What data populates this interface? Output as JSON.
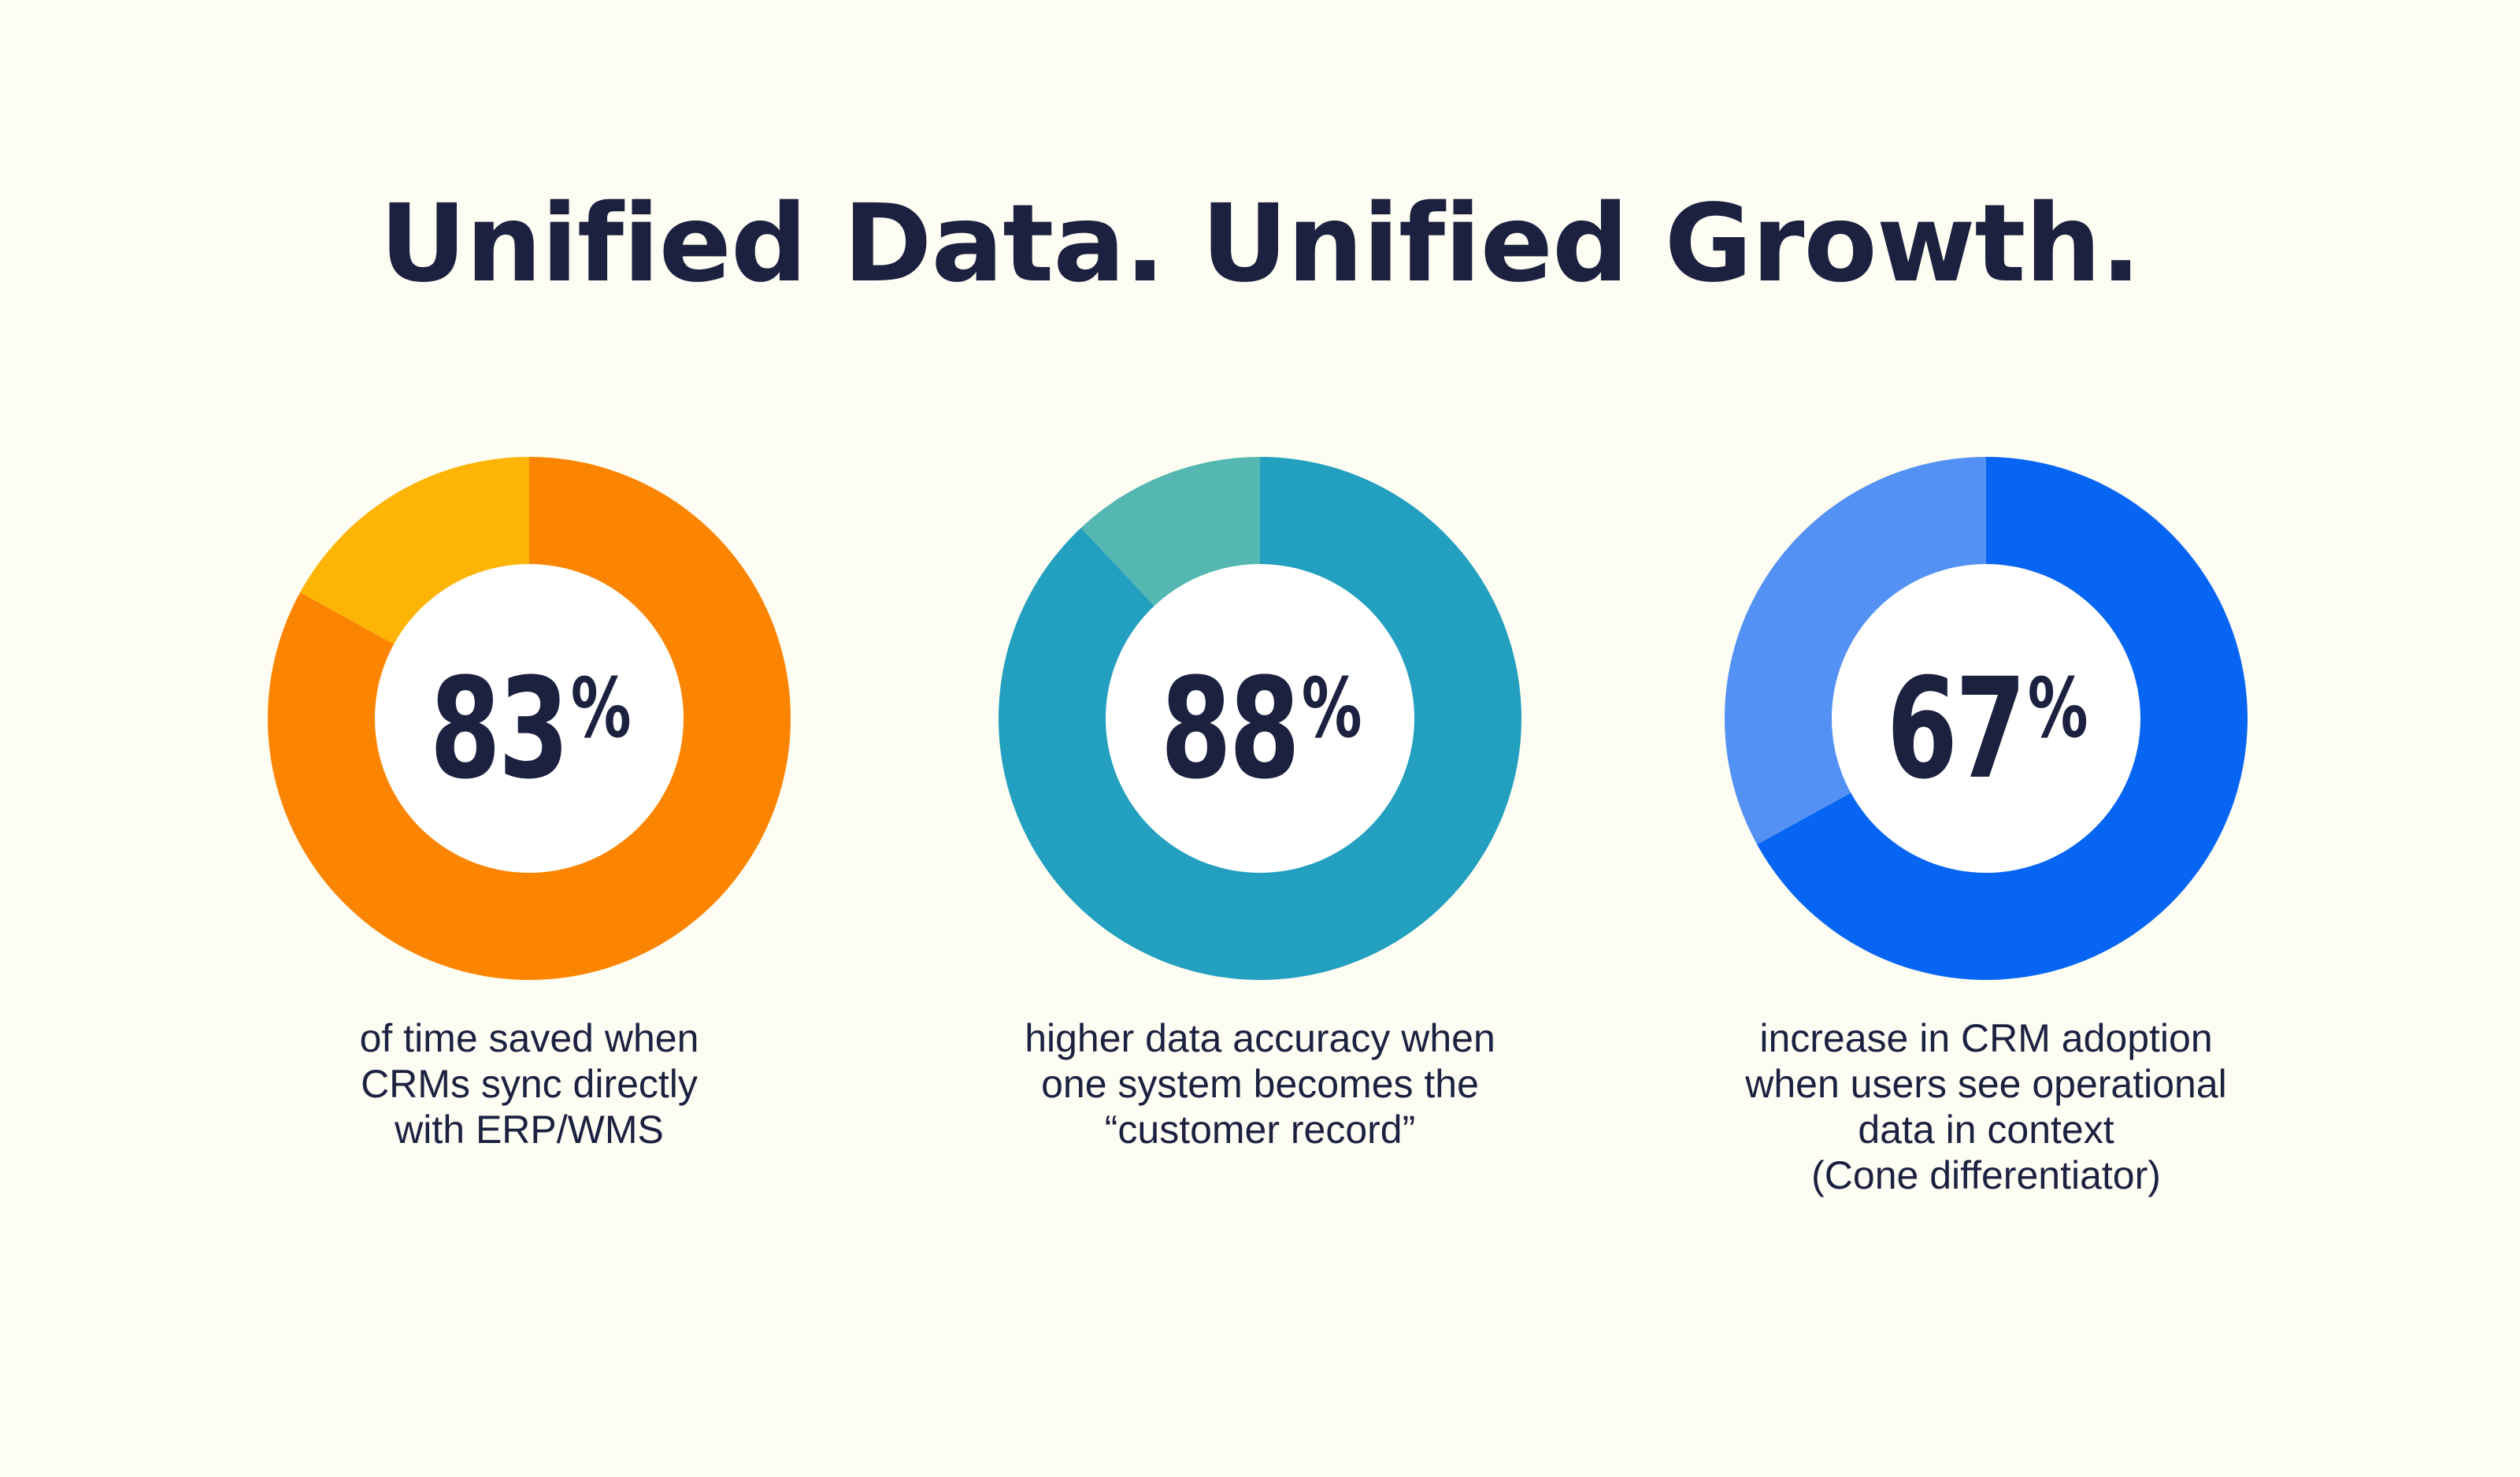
{
  "title": "Unified Data. Unified Growth.",
  "chart_data": [
    {
      "type": "pie",
      "variant": "donut",
      "value": 83,
      "value_label": "83",
      "unit": "%",
      "caption": "of time saved when\nCRMs sync directly\nwith ERP/WMS",
      "colors": {
        "primary": "#fb8500",
        "remainder": "#fdb404"
      }
    },
    {
      "type": "pie",
      "variant": "donut",
      "value": 88,
      "value_label": "88",
      "unit": "%",
      "caption": "higher data accuracy when\none system becomes the\n“customer record”",
      "colors": {
        "primary": "#239fbf",
        "remainder": "#55b7b1"
      }
    },
    {
      "type": "pie",
      "variant": "donut",
      "value": 67,
      "value_label": "67",
      "unit": "%",
      "caption": "increase in CRM adoption\nwhen users see operational\ndata in context\n(Cone differentiator)",
      "colors": {
        "primary": "#0765f4",
        "remainder": "#5491f4"
      }
    }
  ]
}
